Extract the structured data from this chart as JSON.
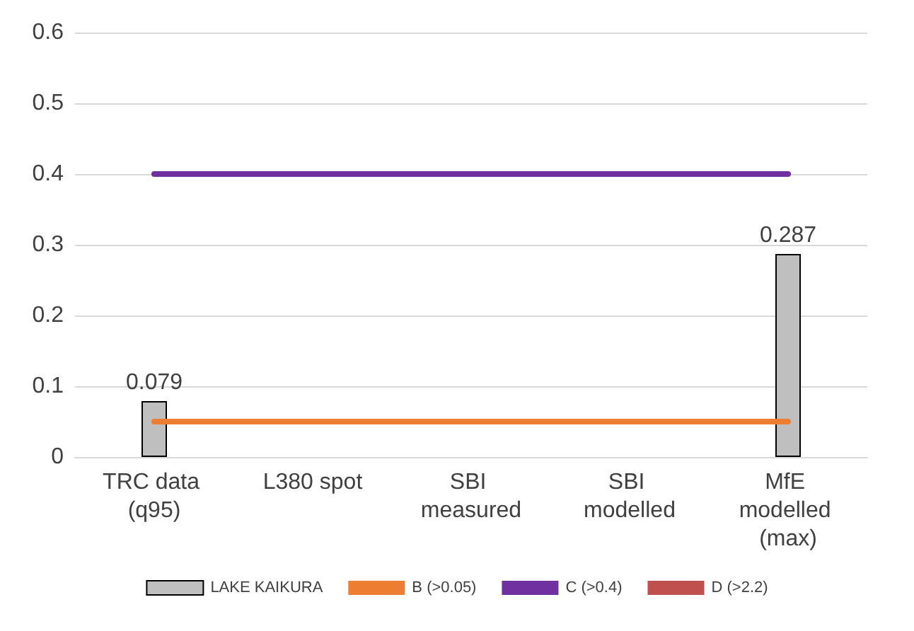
{
  "chart_data": {
    "type": "bar",
    "categories": [
      "TRC data (q95)",
      "L380 spot",
      "SBI measured",
      "SBI modelled",
      "MfE modelled (max)"
    ],
    "series": [
      {
        "name": "LAKE KAIKURA",
        "color": "#bfbfbf",
        "values": [
          0.079,
          null,
          null,
          null,
          0.287
        ],
        "value_labels": [
          "0.079",
          null,
          null,
          null,
          "0.287"
        ]
      },
      {
        "name": "B (>0.05)",
        "type": "line",
        "color": "#ed7d31",
        "values": [
          0.05,
          0.05,
          0.05,
          0.05,
          0.05
        ]
      },
      {
        "name": "C (>0.4)",
        "type": "line",
        "color": "#7030a0",
        "values": [
          0.4,
          0.4,
          0.4,
          0.4,
          0.4
        ]
      },
      {
        "name": "D (>2.2)",
        "type": "line",
        "color": "#c0504d",
        "values": [
          null,
          null,
          null,
          null,
          null
        ]
      }
    ],
    "ylim": [
      0,
      0.6
    ],
    "yticks": [
      0,
      0.1,
      0.2,
      0.3,
      0.4,
      0.5,
      0.6
    ],
    "grid": "y",
    "legend": "bottom",
    "marker": "none"
  }
}
